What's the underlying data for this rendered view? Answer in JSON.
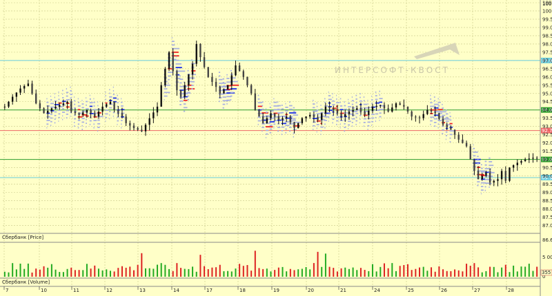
{
  "panels": {
    "price_label": "Сбербанк [Price]",
    "volume_label": "Сбербанк [Volume]"
  },
  "watermark": "ИНТЕРСОФТ-КВОСТ",
  "colors": {
    "background": "#ffffc8",
    "grid": "#c8c888",
    "bull": "#22aa22",
    "bear": "#dd2222",
    "candle": "#111111",
    "profile_light": "#a8b0e0",
    "profile_blue": "#1a2ee8",
    "profile_red": "#ee2222",
    "level_green": "#2e9e2e",
    "level_cyan": "#66ccdd",
    "level_red": "#ee6666"
  },
  "chart_data": {
    "type": "candlestick",
    "price_axis": {
      "ticks": [
        "100.5",
        "100.0",
        "99.5",
        "99.0",
        "98.5",
        "98.0",
        "97.5",
        "97.0",
        "96.5",
        "96.0",
        "95.5",
        "95.0",
        "94.5",
        "94.0",
        "93.5",
        "93.0",
        "92.5",
        "92.0",
        "91.5",
        "91.0",
        "90.5",
        "90.0",
        "89.5",
        "89.0",
        "88.5",
        "88.0",
        "87.5",
        "87.0"
      ],
      "top_label": "100.50",
      "bottom_label": "86.60",
      "ylim": [
        86.6,
        100.5
      ]
    },
    "x_tick_labels": [
      "7",
      "10",
      "11",
      "12",
      "13",
      "14",
      "17",
      "18",
      "19",
      "20",
      "21",
      "24",
      "25",
      "26",
      "27",
      "28"
    ],
    "levels": [
      {
        "price": 97.0,
        "label": "97.00",
        "type": "cyan"
      },
      {
        "price": 94.0,
        "label": "94.00",
        "type": "green"
      },
      {
        "price": 92.75,
        "label": "92.75",
        "type": "red"
      },
      {
        "price": 91.0,
        "label": "91.00",
        "type": "green"
      },
      {
        "price": 89.9,
        "label": "89.90",
        "type": "cyan"
      }
    ],
    "close_path": [
      [
        0,
        94.2
      ],
      [
        2,
        94.8
      ],
      [
        4,
        95.3
      ],
      [
        6,
        95.6
      ],
      [
        7,
        95.0
      ],
      [
        8,
        94.4
      ],
      [
        10,
        93.8
      ],
      [
        12,
        94.1
      ],
      [
        14,
        94.3
      ],
      [
        16,
        94.5
      ],
      [
        17,
        93.9
      ],
      [
        19,
        93.7
      ],
      [
        21,
        94.0
      ],
      [
        23,
        93.6
      ],
      [
        25,
        94.2
      ],
      [
        27,
        94.5
      ],
      [
        28,
        94.0
      ],
      [
        30,
        93.6
      ],
      [
        31,
        93.2
      ],
      [
        33,
        92.9
      ],
      [
        35,
        92.7
      ],
      [
        37,
        93.5
      ],
      [
        39,
        94.2
      ],
      [
        40,
        95.5
      ],
      [
        42,
        97.5
      ],
      [
        44,
        95.2
      ],
      [
        45,
        94.8
      ],
      [
        46,
        95.5
      ],
      [
        48,
        96.8
      ],
      [
        49,
        98.0
      ],
      [
        50,
        97.2
      ],
      [
        51,
        96.6
      ],
      [
        52,
        96.0
      ],
      [
        54,
        95.4
      ],
      [
        55,
        95.0
      ],
      [
        57,
        95.5
      ],
      [
        59,
        96.7
      ],
      [
        61,
        96.0
      ],
      [
        63,
        95.0
      ],
      [
        64,
        94.0
      ],
      [
        66,
        93.2
      ],
      [
        68,
        93.8
      ],
      [
        70,
        93.4
      ],
      [
        72,
        93.6
      ],
      [
        74,
        92.9
      ],
      [
        76,
        93.5
      ],
      [
        78,
        93.7
      ],
      [
        80,
        93.4
      ],
      [
        82,
        94.2
      ],
      [
        84,
        94.0
      ],
      [
        86,
        93.6
      ],
      [
        88,
        93.9
      ],
      [
        90,
        94.1
      ],
      [
        92,
        93.7
      ],
      [
        94,
        94.2
      ],
      [
        96,
        94.3
      ],
      [
        98,
        93.9
      ],
      [
        100,
        94.4
      ],
      [
        102,
        94.2
      ],
      [
        104,
        93.6
      ],
      [
        106,
        93.5
      ],
      [
        108,
        94.0
      ],
      [
        110,
        93.8
      ],
      [
        112,
        93.1
      ],
      [
        114,
        92.8
      ],
      [
        116,
        92.2
      ],
      [
        118,
        91.8
      ],
      [
        119,
        91.0
      ],
      [
        120,
        90.3
      ],
      [
        121,
        89.8
      ],
      [
        123,
        90.2
      ],
      [
        124,
        89.6
      ],
      [
        126,
        89.8
      ],
      [
        127,
        90.3
      ],
      [
        128,
        89.7
      ],
      [
        129,
        90.5
      ],
      [
        131,
        90.8
      ],
      [
        133,
        91.0
      ],
      [
        135,
        91.1
      ],
      [
        137,
        91.0
      ]
    ],
    "volume_axis": {
      "ticks": [
        "5 000",
        "0"
      ],
      "last_label": "355 900"
    },
    "volume_bars_count": 137
  }
}
